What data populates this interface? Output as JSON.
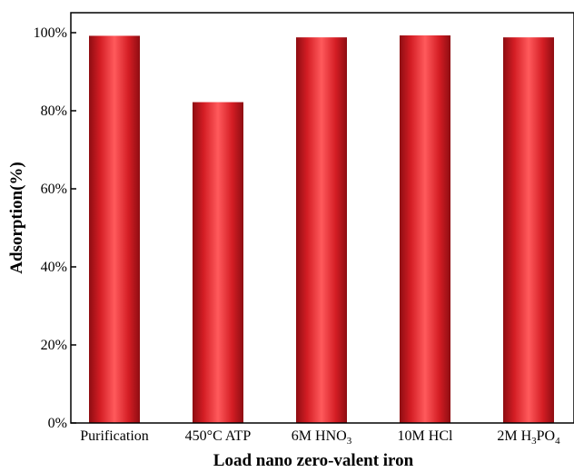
{
  "chart_data": {
    "type": "bar",
    "title": "",
    "xlabel": "Load nano zero-valent iron",
    "ylabel": "Adsorption(%)",
    "ylim": [
      0,
      100
    ],
    "yticks": [
      "0%",
      "20%",
      "40%",
      "60%",
      "80%",
      "100%"
    ],
    "categories": [
      {
        "parts": [
          [
            "Purification",
            ""
          ]
        ]
      },
      {
        "parts": [
          [
            "450°C ATP",
            ""
          ]
        ]
      },
      {
        "parts": [
          [
            "6M HNO",
            ""
          ],
          [
            "3",
            "sub"
          ]
        ]
      },
      {
        "parts": [
          [
            "10M HCl",
            ""
          ]
        ]
      },
      {
        "parts": [
          [
            "2M H",
            ""
          ],
          [
            "3",
            "sub"
          ],
          [
            "PO",
            ""
          ],
          [
            "4",
            "sub"
          ]
        ]
      }
    ],
    "values": [
      99.2,
      82.2,
      98.8,
      99.3,
      98.8
    ],
    "grid": false,
    "legend": "none",
    "bar_color": "#e8232b"
  }
}
